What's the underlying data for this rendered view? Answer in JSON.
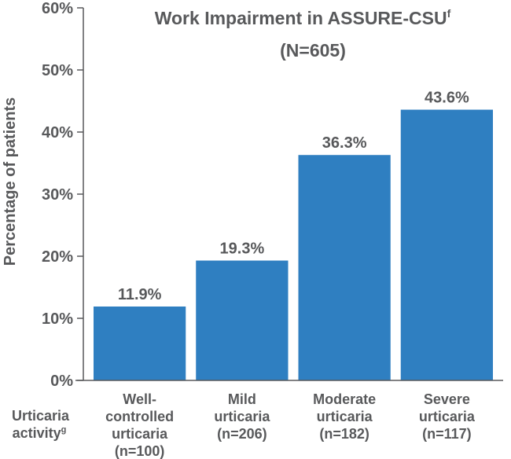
{
  "chart_data": {
    "type": "bar",
    "title": "Work Impairment in ASSURE-CSU",
    "title_superscript": "f",
    "subtitle": "(N=605)",
    "ylabel": "Percentage of patients",
    "xlabel": "Urticaria activity",
    "xlabel_superscript": "g",
    "ylim": [
      0,
      60
    ],
    "yticks": [
      "0%",
      "10%",
      "20%",
      "30%",
      "40%",
      "50%",
      "60%"
    ],
    "categories": [
      [
        "Well-",
        "controlled",
        "urticaria",
        "(n=100)"
      ],
      [
        "Mild",
        "urticaria",
        "(n=206)"
      ],
      [
        "Moderate",
        "urticaria",
        "(n=182)"
      ],
      [
        "Severe",
        "urticaria",
        "(n=117)"
      ]
    ],
    "values": [
      11.9,
      19.3,
      36.3,
      43.6
    ],
    "data_labels": [
      "11.9%",
      "19.3%",
      "36.3%",
      "43.6%"
    ],
    "bar_color": "#2f7fc1",
    "text_color": "#58595b",
    "grid": false,
    "legend": "none"
  }
}
